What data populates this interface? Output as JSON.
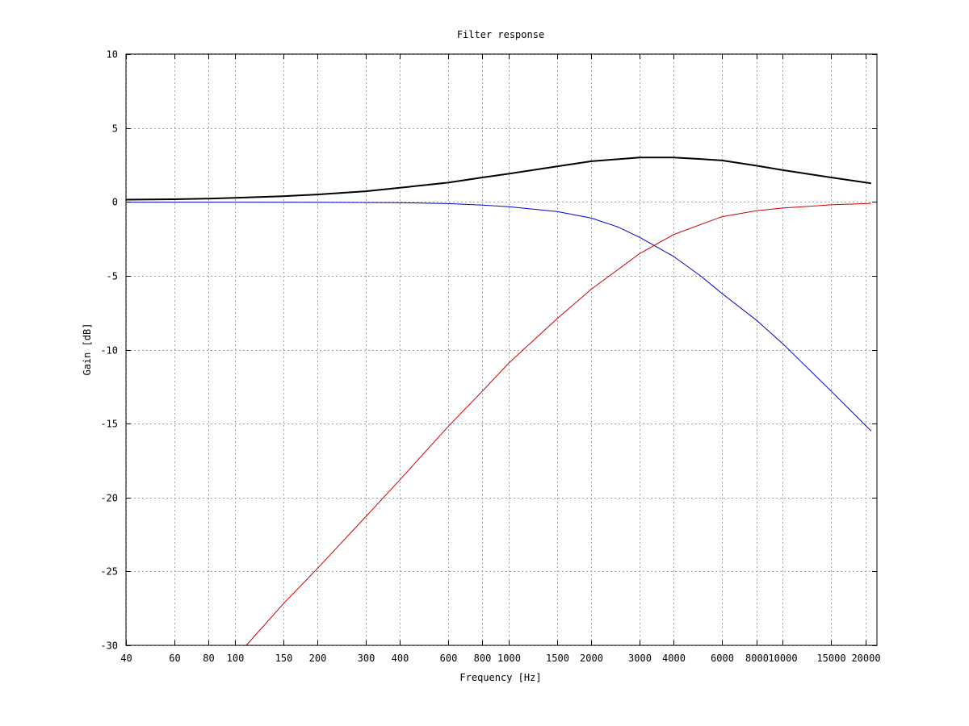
{
  "chart_data": {
    "type": "line",
    "title": "Filter response",
    "xlabel": "Frequency [Hz]",
    "ylabel": "Gain [dB]",
    "xscale": "log",
    "xlim": [
      40,
      22050
    ],
    "ylim": [
      -30,
      10
    ],
    "grid": true,
    "x_ticks": [
      40,
      60,
      80,
      100,
      150,
      200,
      300,
      400,
      600,
      800,
      1000,
      1500,
      2000,
      3000,
      4000,
      6000,
      8000,
      10000,
      15000,
      20000
    ],
    "y_ticks": [
      10,
      5,
      0,
      -5,
      -10,
      -15,
      -20,
      -25,
      -30
    ],
    "series": [
      {
        "color": "#000000",
        "line_width": 2,
        "x": [
          40,
          60,
          80,
          100,
          150,
          200,
          300,
          400,
          600,
          800,
          1000,
          1500,
          2000,
          3000,
          4000,
          5000,
          6000,
          8000,
          10000,
          15000,
          21000
        ],
        "y": [
          0.15,
          0.18,
          0.22,
          0.27,
          0.38,
          0.5,
          0.72,
          0.95,
          1.3,
          1.65,
          1.9,
          2.4,
          2.75,
          3.0,
          3.0,
          2.9,
          2.8,
          2.45,
          2.15,
          1.65,
          1.25
        ]
      },
      {
        "color": "#0000cc",
        "line_width": 1,
        "x": [
          40,
          100,
          200,
          400,
          600,
          800,
          1000,
          1500,
          2000,
          2500,
          3000,
          4000,
          5000,
          6000,
          8000,
          10000,
          15000,
          21000
        ],
        "y": [
          -0.02,
          -0.02,
          -0.03,
          -0.06,
          -0.12,
          -0.22,
          -0.33,
          -0.65,
          -1.1,
          -1.7,
          -2.4,
          -3.7,
          -5.0,
          -6.2,
          -8.0,
          -9.6,
          -12.8,
          -15.5
        ]
      },
      {
        "color": "#cc0000",
        "line_width": 1,
        "x": [
          110,
          150,
          200,
          300,
          400,
          600,
          800,
          1000,
          1500,
          2000,
          3000,
          4000,
          6000,
          8000,
          10000,
          15000,
          21000
        ],
        "y": [
          -30.0,
          -27.2,
          -24.8,
          -21.3,
          -18.8,
          -15.2,
          -12.8,
          -10.9,
          -7.9,
          -5.9,
          -3.5,
          -2.2,
          -1.0,
          -0.6,
          -0.42,
          -0.2,
          -0.1
        ]
      }
    ]
  }
}
